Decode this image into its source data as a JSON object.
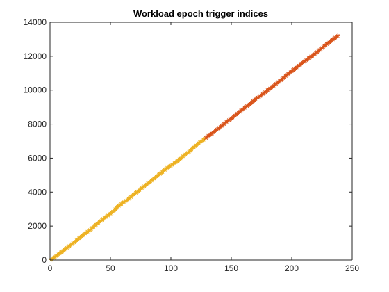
{
  "chart_data": {
    "type": "scatter",
    "title": "Workload epoch trigger indices",
    "xlabel": "",
    "ylabel": "",
    "xlim": [
      0,
      250
    ],
    "ylim": [
      0,
      14000
    ],
    "xticks": [
      0,
      50,
      100,
      150,
      200,
      250
    ],
    "yticks": [
      0,
      2000,
      4000,
      6000,
      8000,
      10000,
      12000,
      14000
    ],
    "grid": false,
    "marker": "asterisk",
    "series": [
      {
        "color": "#EDB120",
        "x_start": 1,
        "x_end": 128,
        "y_start": 0,
        "y_end": 7150
      },
      {
        "color": "#D95319",
        "x_start": 129,
        "x_end": 238,
        "y_start": 7200,
        "y_end": 13200
      }
    ]
  }
}
